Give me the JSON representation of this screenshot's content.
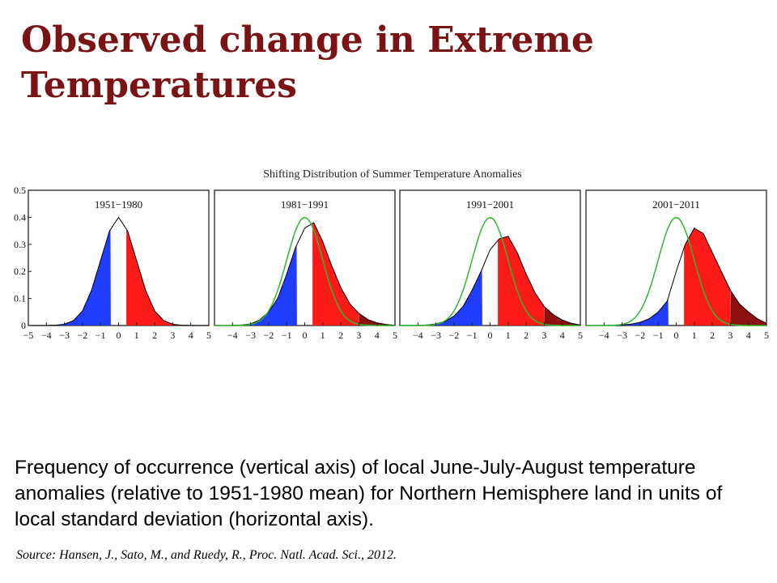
{
  "slide": {
    "title": "Observed change in Extreme Temperatures",
    "caption": "Frequency of occurrence (vertical axis) of local June-July-August temperature anomalies (relative to 1951-1980 mean) for Northern Hemisphere land in units of local standard deviation (horizontal axis).",
    "source": "Source: Hansen, J., Sato, M., and Ruedy, R., Proc. Natl. Acad. Sci., 2012."
  },
  "colors": {
    "title": "#7a1414",
    "cold": "#1f3cff",
    "hot": "#ff1a1a",
    "extreme_hot": "#8c1010",
    "reference_curve": "#2db82d"
  },
  "chart_data": {
    "type": "area",
    "title": "Shifting Distribution of Summer Temperature Anomalies",
    "xlim": [
      -5,
      5
    ],
    "ylim": [
      0,
      0.5
    ],
    "y_ticks": [
      0,
      0.1,
      0.2,
      0.3,
      0.4,
      0.5
    ],
    "y_tick_labels": [
      "0",
      "0.1",
      "0.2",
      "0.3",
      "0.4",
      "0.5"
    ],
    "reference_curve": "normal distribution, mean 0, standard deviation 1 (1951-1980)",
    "color_thresholds": {
      "cold_below": -0.43,
      "hot_above": 0.43,
      "extreme_hot_above": 3
    },
    "panels": [
      {
        "label": "1951−1980",
        "x_tick_labels": [
          "−5",
          "−4",
          "−3",
          "−2",
          "−1",
          "0",
          "1",
          "2",
          "3",
          "4",
          "5"
        ],
        "show_reference": false,
        "x": [
          -5,
          -4.5,
          -4,
          -3.5,
          -3,
          -2.5,
          -2,
          -1.5,
          -1,
          -0.5,
          0,
          0.5,
          1,
          1.5,
          2,
          2.5,
          3,
          3.5,
          4,
          4.5,
          5
        ],
        "y": [
          0,
          0,
          0,
          0.001,
          0.005,
          0.018,
          0.054,
          0.13,
          0.24,
          0.35,
          0.4,
          0.35,
          0.24,
          0.13,
          0.054,
          0.018,
          0.005,
          0.001,
          0,
          0,
          0
        ]
      },
      {
        "label": "1981−1991",
        "x_tick_labels": [
          "−4",
          "−3",
          "−2",
          "−1",
          "0",
          "1",
          "2",
          "3",
          "4",
          "5"
        ],
        "show_reference": true,
        "x": [
          -5,
          -4.5,
          -4,
          -3.5,
          -3,
          -2.5,
          -2,
          -1.5,
          -1,
          -0.5,
          0,
          0.5,
          1,
          1.5,
          2,
          2.5,
          3,
          3.5,
          4,
          4.5,
          5
        ],
        "y": [
          0,
          0,
          0,
          0.002,
          0.006,
          0.02,
          0.05,
          0.1,
          0.19,
          0.29,
          0.36,
          0.38,
          0.31,
          0.22,
          0.14,
          0.08,
          0.045,
          0.022,
          0.01,
          0.004,
          0.001
        ]
      },
      {
        "label": "1991−2001",
        "x_tick_labels": [
          "−4",
          "−3",
          "−2",
          "−1",
          "0",
          "1",
          "2",
          "3",
          "4",
          "5"
        ],
        "show_reference": true,
        "x": [
          -5,
          -4.5,
          -4,
          -3.5,
          -3,
          -2.5,
          -2,
          -1.5,
          -1,
          -0.5,
          0,
          0.5,
          1,
          1.5,
          2,
          2.5,
          3,
          3.5,
          4,
          4.5,
          5
        ],
        "y": [
          0,
          0,
          0,
          0.002,
          0.006,
          0.015,
          0.035,
          0.07,
          0.13,
          0.2,
          0.28,
          0.32,
          0.33,
          0.27,
          0.19,
          0.12,
          0.07,
          0.04,
          0.02,
          0.008,
          0.002
        ]
      },
      {
        "label": "2001−2011",
        "x_tick_labels": [
          "−4",
          "−3",
          "−2",
          "−1",
          "0",
          "1",
          "2",
          "3",
          "4",
          "5"
        ],
        "show_reference": true,
        "x": [
          -5,
          -4.5,
          -4,
          -3.5,
          -3,
          -2.5,
          -2,
          -1.5,
          -1,
          -0.5,
          0,
          0.5,
          1,
          1.5,
          2,
          2.5,
          3,
          3.5,
          4,
          4.5,
          5
        ],
        "y": [
          0,
          0,
          0,
          0,
          0.002,
          0.005,
          0.012,
          0.025,
          0.05,
          0.09,
          0.2,
          0.3,
          0.36,
          0.34,
          0.27,
          0.2,
          0.13,
          0.08,
          0.05,
          0.025,
          0.008
        ]
      }
    ]
  }
}
